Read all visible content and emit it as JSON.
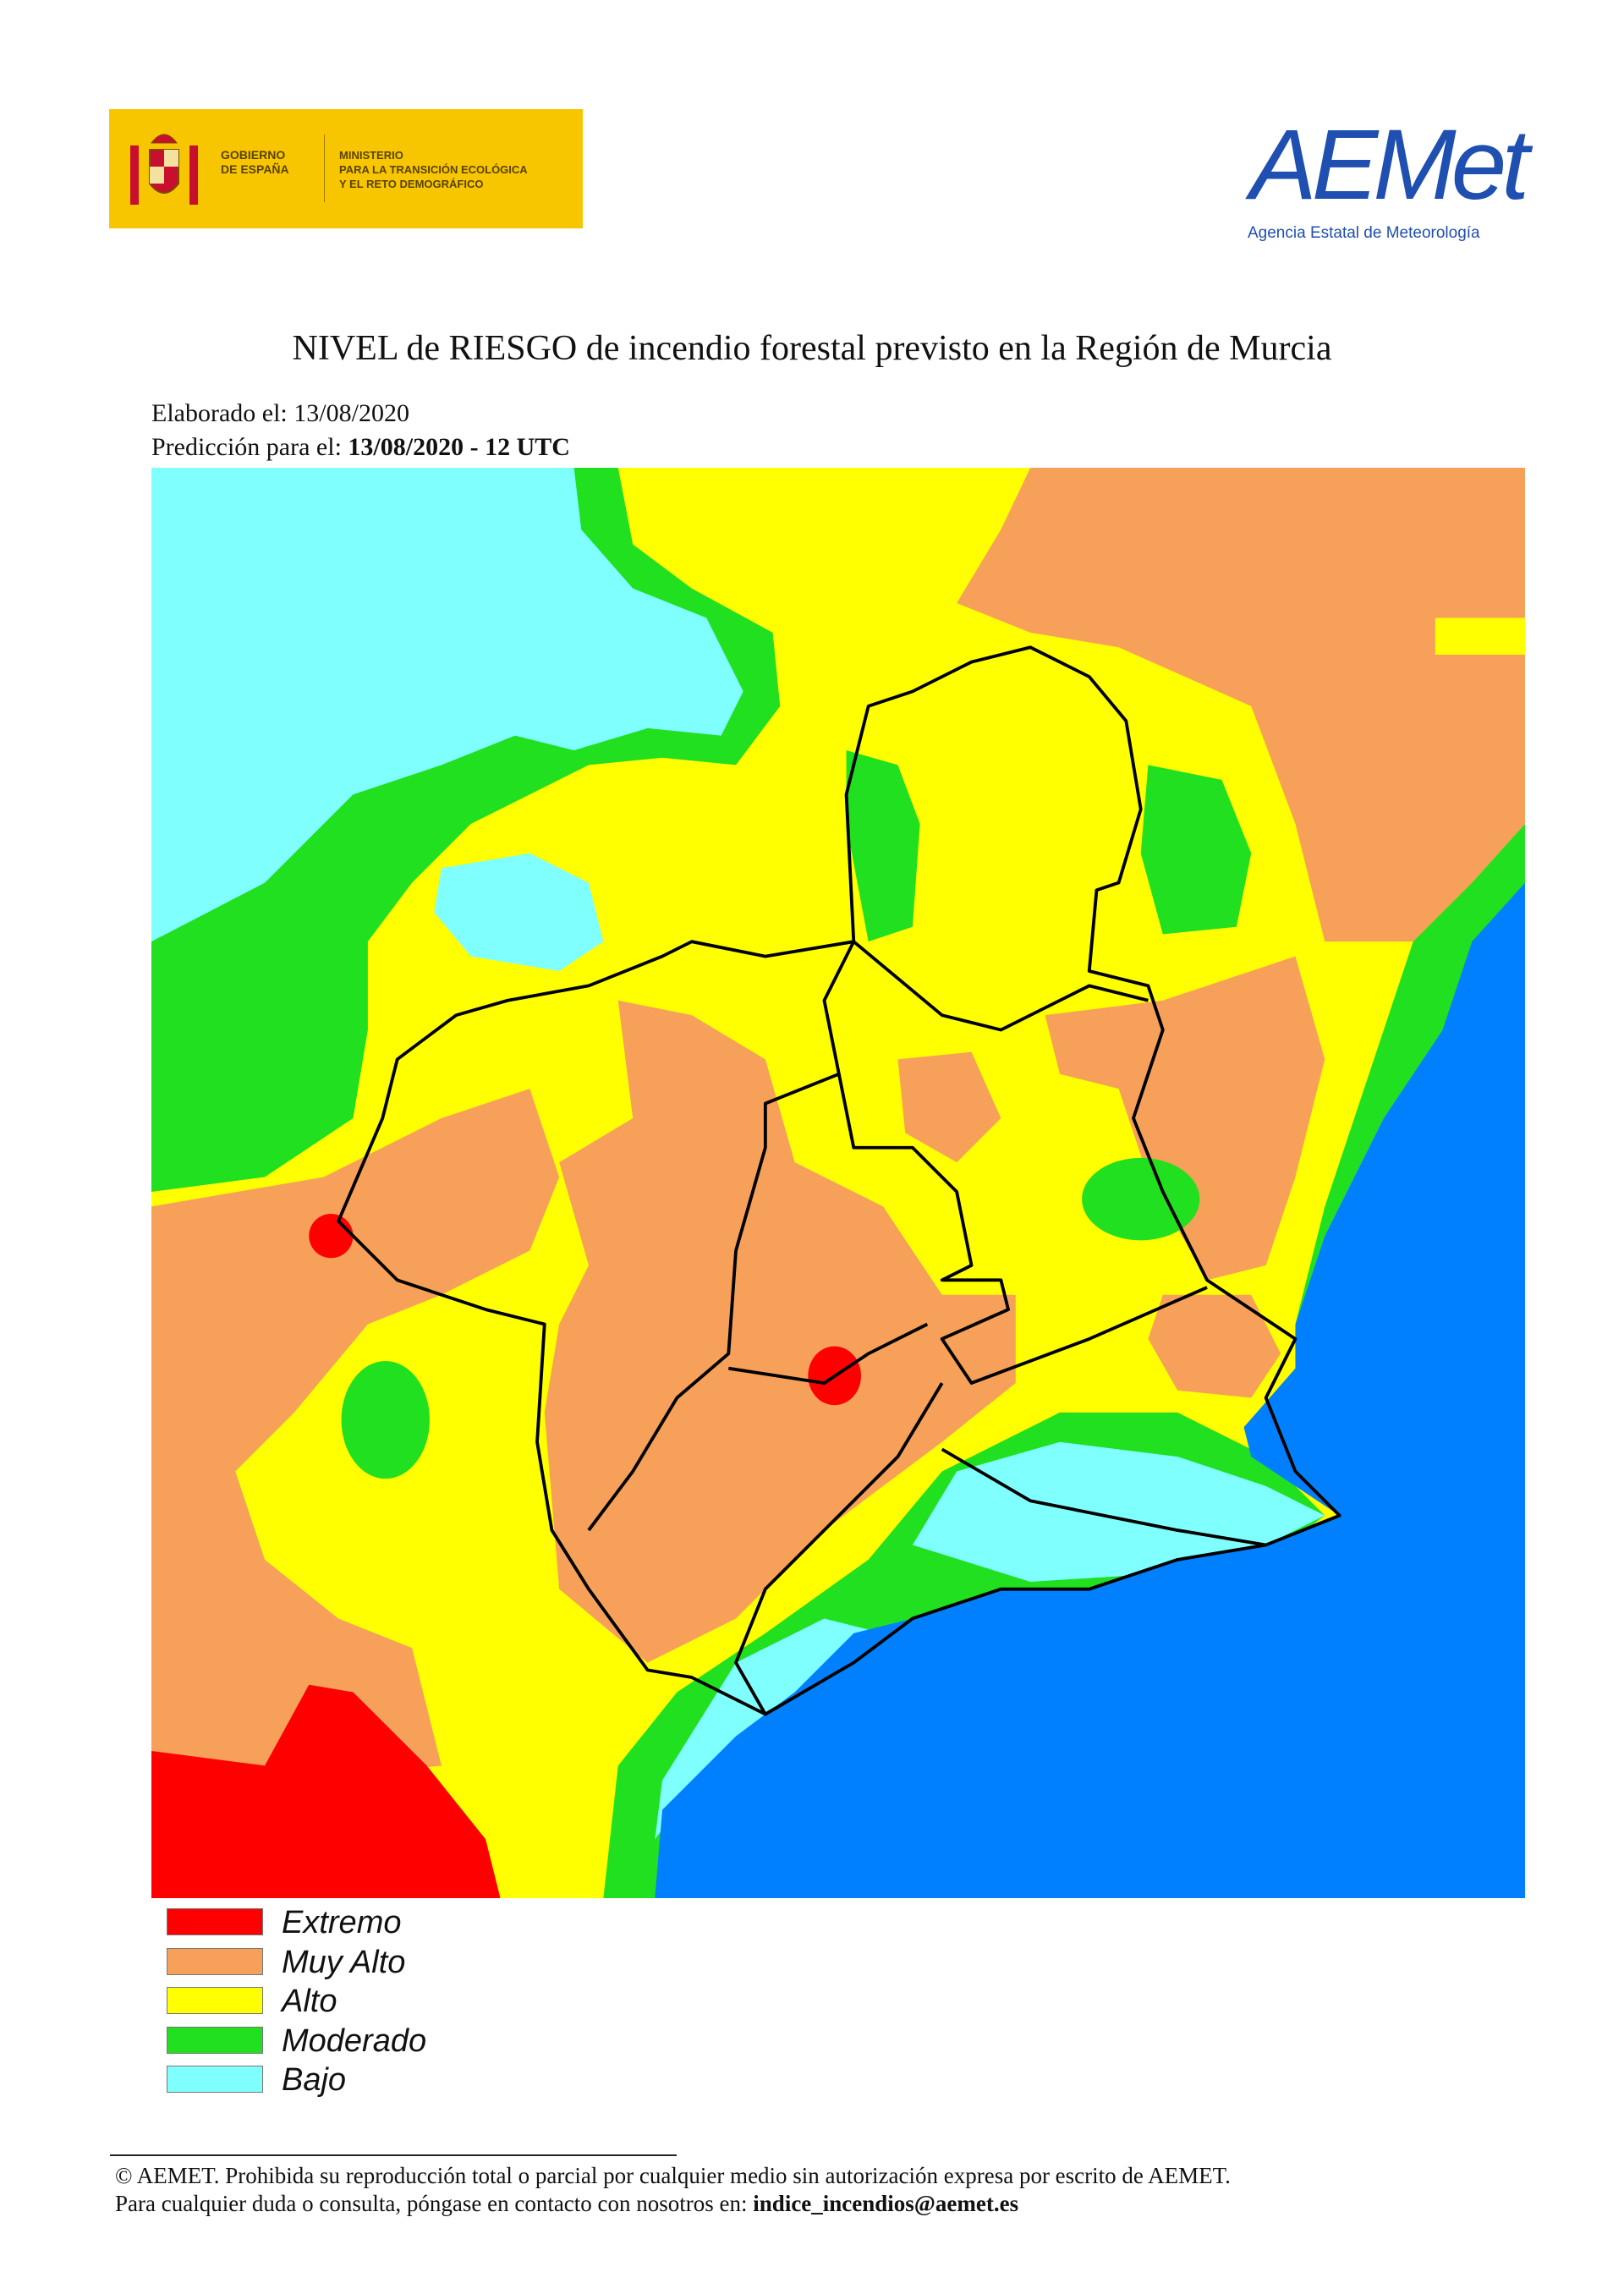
{
  "header": {
    "government": [
      "GOBIERNO",
      "DE ESPAÑA"
    ],
    "ministry": [
      "MINISTERIO",
      "PARA LA TRANSICIÓN ECOLÓGICA",
      "Y EL RETO DEMOGRÁFICO"
    ],
    "logo": {
      "name": "AEMet",
      "subtitle": "Agencia Estatal de Meteorología"
    }
  },
  "title": "NIVEL de RIESGO de incendio forestal previsto en la Región de Murcia",
  "issued": {
    "label": "Elaborado el:",
    "value": "13/08/2020"
  },
  "forecast": {
    "label": "Predicción para el:",
    "value": "13/08/2020 - 12 UTC"
  },
  "legend": [
    {
      "label": "Extremo",
      "color": "#ff0000"
    },
    {
      "label": "Muy Alto",
      "color": "#f7a05a"
    },
    {
      "label": "Alto",
      "color": "#ffff00"
    },
    {
      "label": "Moderado",
      "color": "#20e020"
    },
    {
      "label": "Bajo",
      "color": "#80ffff"
    }
  ],
  "footer": {
    "notice": "© AEMET. Prohibida su reproducción total o parcial por cualquier medio sin autorización expresa por escrito de AEMET.",
    "contact": "Para cualquier duda o consulta, póngase en contacto con nosotros en:",
    "email": "indice_incendios@aemet.es"
  }
}
